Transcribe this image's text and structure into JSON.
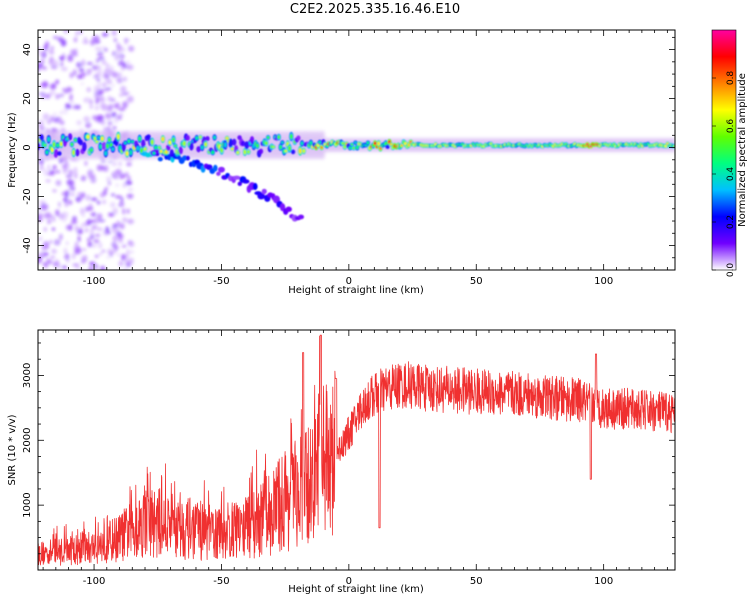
{
  "figure_title": "C2E2.2025.335.16.46.E10",
  "colors": {
    "snr_line": "#f03030",
    "axis": "#000000",
    "spectrogram_halo": "#c8a0f0",
    "colormap": [
      "#ffffff",
      "#7000ff",
      "#0000ff",
      "#00c0ff",
      "#00ff80",
      "#60ff00",
      "#ffff00",
      "#ff8000",
      "#ff0000",
      "#ff00a0"
    ]
  },
  "chart_data": [
    {
      "type": "heatmap",
      "title": "",
      "xlabel": "Height of straight line (km)",
      "ylabel": "Frequency (Hz)",
      "xlim": [
        -122,
        128
      ],
      "ylim": [
        -50,
        48
      ],
      "xticks": [
        -100,
        -50,
        0,
        50,
        100
      ],
      "yticks": [
        -40,
        -20,
        0,
        20,
        40
      ],
      "colorbar": {
        "label": "Normalized spectral amplitude",
        "range": [
          0,
          1
        ],
        "ticks": [
          0.0,
          0.2,
          0.4,
          0.6,
          0.8
        ]
      },
      "features": [
        {
          "name": "main band",
          "x_range": [
            -122,
            128
          ],
          "center_hz": 1,
          "halfwidth_hz": 3,
          "peak_amplitude": 0.9
        },
        {
          "name": "diverging branch",
          "x_range": [
            -80,
            -18
          ],
          "start_hz": -3,
          "end_hz": -30,
          "peak_amplitude": 0.4
        },
        {
          "name": "scattered noise",
          "x_range": [
            -122,
            -85
          ],
          "freq_range_hz": [
            -50,
            48
          ],
          "peak_amplitude": 0.15
        }
      ]
    },
    {
      "type": "line",
      "title": "",
      "xlabel": "Height of straight line (km)",
      "ylabel": "SNR (10 * v/v)",
      "xlim": [
        -122,
        128
      ],
      "ylim": [
        0,
        3700
      ],
      "xticks": [
        -100,
        -50,
        0,
        50,
        100
      ],
      "yticks": [
        1000,
        2000,
        3000
      ],
      "grid": false,
      "series": [
        {
          "name": "SNR",
          "envelope_x": [
            -122,
            -110,
            -100,
            -90,
            -80,
            -70,
            -60,
            -50,
            -40,
            -30,
            -25,
            -20,
            -15,
            -10,
            -5,
            0,
            5,
            10,
            15,
            20,
            25,
            30,
            40,
            50,
            60,
            70,
            80,
            90,
            95,
            100,
            110,
            120,
            128
          ],
          "envelope_y": [
            250,
            300,
            350,
            500,
            750,
            700,
            600,
            550,
            650,
            900,
            1100,
            1150,
            1300,
            1550,
            1800,
            2100,
            2500,
            2700,
            2800,
            2850,
            2850,
            2800,
            2780,
            2750,
            2720,
            2700,
            2650,
            2620,
            2550,
            2500,
            2480,
            2450,
            2420
          ],
          "spikes": [
            {
              "x": -18,
              "y": 3350
            },
            {
              "x": -11,
              "y": 3620
            },
            {
              "x": -5,
              "y": 2950
            },
            {
              "x": 12,
              "y": 650
            },
            {
              "x": 95,
              "y": 1400
            },
            {
              "x": 97,
              "y": 3330
            }
          ]
        }
      ]
    }
  ]
}
